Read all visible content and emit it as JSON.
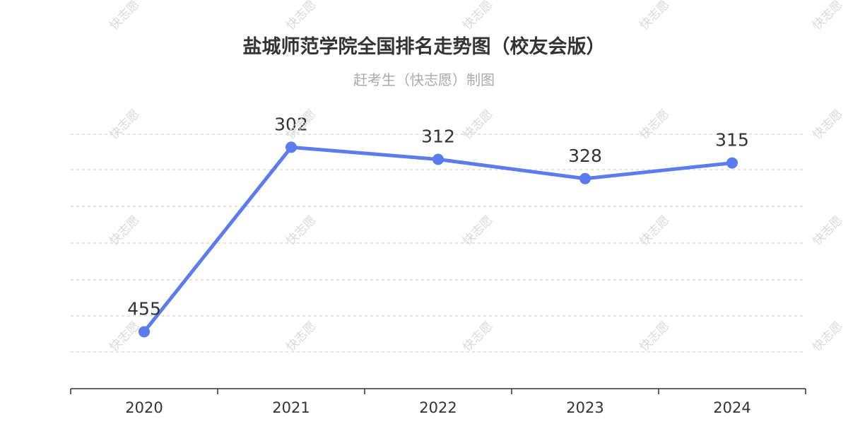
{
  "title": "盐城师范学院全国排名走势图（校友会版）",
  "subtitle": "赶考生（快志愿）制图",
  "watermark": "快志愿",
  "chart_data": {
    "type": "line",
    "categories": [
      "2020",
      "2021",
      "2022",
      "2023",
      "2024"
    ],
    "values": [
      455,
      302,
      312,
      328,
      315
    ],
    "title": "盐城师范学院全国排名走势图（校友会版）",
    "subtitle": "赶考生（快志愿）制图",
    "xlabel": "",
    "ylabel": "",
    "y_axis": "inverted (rank, smaller at top), no tick labels",
    "grid": "horizontal dashed",
    "line_color": "#5b7bef"
  }
}
